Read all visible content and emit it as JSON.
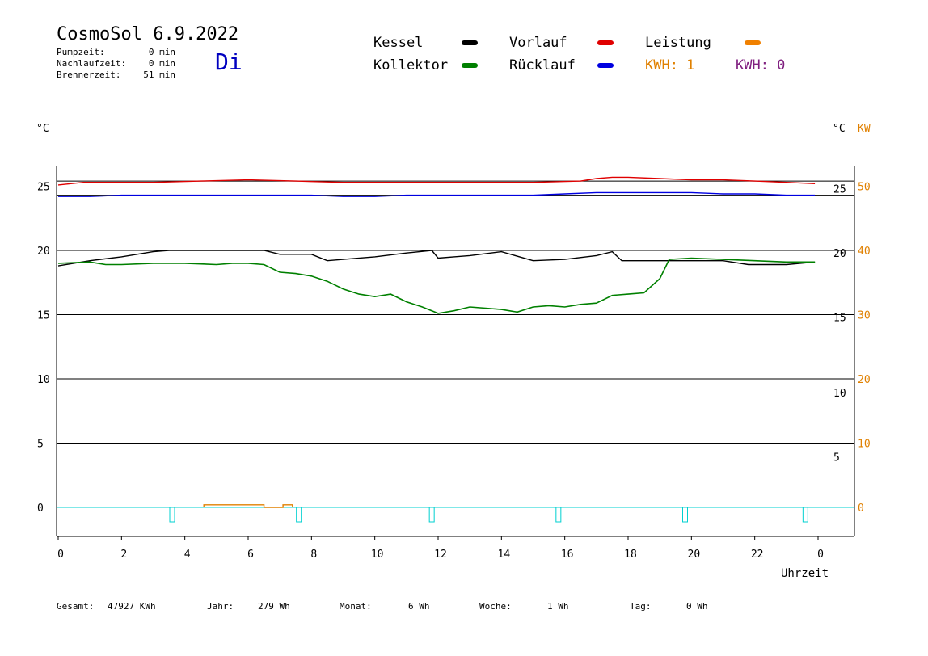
{
  "header": {
    "title": "CosmoSol 6.9.2022",
    "day": "Di",
    "stats": [
      {
        "label": "Pumpzeit:",
        "value": "0 min"
      },
      {
        "label": "Nachlaufzeit:",
        "value": "0 min"
      },
      {
        "label": "Brennerzeit:",
        "value": "51 min"
      }
    ]
  },
  "legend": {
    "kessel": {
      "label": "Kessel",
      "color": "#000000"
    },
    "kollektor": {
      "label": "Kollektor",
      "color": "#008000"
    },
    "vorlauf": {
      "label": "Vorlauf",
      "color": "#e00000"
    },
    "ruecklauf": {
      "label": "Rücklauf",
      "color": "#0000e0"
    },
    "leistung": {
      "label": "Leistung",
      "color": "#f08000"
    },
    "kwh1": {
      "label": "KWH: 1",
      "color": "#e08000"
    },
    "kwh2": {
      "label": "KWH: 0",
      "color": "#802080"
    }
  },
  "footer": {
    "gesamt": {
      "label": "Gesamt:",
      "value": "47927 KWh"
    },
    "jahr": {
      "label": "Jahr:",
      "value": "279 Wh"
    },
    "monat": {
      "label": "Monat:",
      "value": "6 Wh"
    },
    "woche": {
      "label": "Woche:",
      "value": "1 Wh"
    },
    "tag": {
      "label": "Tag:",
      "value": "0 Wh"
    }
  },
  "chart_data": {
    "type": "line",
    "left_unit": "°C",
    "right_unit": "°C",
    "right_unit2": "KW",
    "xlabel": "Uhrzeit",
    "x_ticks": [
      "0",
      "2",
      "4",
      "6",
      "8",
      "10",
      "12",
      "14",
      "16",
      "18",
      "20",
      "22",
      "0"
    ],
    "xlim": [
      0,
      24
    ],
    "left_ticks": [
      "0",
      "5",
      "10",
      "15",
      "20",
      "25"
    ],
    "left_ylim": [
      0,
      25
    ],
    "right_ticks": [
      "5",
      "10",
      "15",
      "20",
      "25"
    ],
    "kw_ticks": [
      "0",
      "10",
      "20",
      "30",
      "40",
      "50"
    ],
    "series": [
      {
        "name": "Vorlauf",
        "color": "#e00000",
        "x": [
          0,
          0.8,
          1.5,
          3,
          4.5,
          6,
          7.5,
          9,
          10.5,
          12,
          13.5,
          15,
          16.5,
          17,
          17.5,
          18,
          19,
          20,
          21,
          22,
          23,
          23.9
        ],
        "y": [
          25.1,
          25.3,
          25.3,
          25.3,
          25.4,
          25.5,
          25.4,
          25.3,
          25.3,
          25.3,
          25.3,
          25.3,
          25.4,
          25.6,
          25.7,
          25.7,
          25.6,
          25.5,
          25.5,
          25.4,
          25.3,
          25.2
        ]
      },
      {
        "name": "Rücklauf",
        "color": "#0000e0",
        "x": [
          0,
          1,
          2,
          3,
          4,
          5,
          6,
          7,
          8,
          9,
          10,
          11,
          12,
          13,
          14,
          15,
          16,
          17,
          18,
          19,
          20,
          21,
          22,
          23,
          23.9
        ],
        "y": [
          24.2,
          24.2,
          24.3,
          24.3,
          24.3,
          24.3,
          24.3,
          24.3,
          24.3,
          24.2,
          24.2,
          24.3,
          24.3,
          24.3,
          24.3,
          24.3,
          24.4,
          24.5,
          24.5,
          24.5,
          24.5,
          24.4,
          24.4,
          24.3,
          24.3
        ]
      },
      {
        "name": "Kessel",
        "color": "#000000",
        "x": [
          0,
          1,
          2,
          3,
          3.5,
          4,
          5,
          6,
          6.5,
          7,
          8,
          8.5,
          9,
          10,
          11,
          11.8,
          12,
          12.5,
          13,
          14,
          15,
          16,
          17,
          17.5,
          17.8,
          18,
          19,
          20,
          21,
          21.8,
          22,
          23,
          23.9
        ],
        "y": [
          18.8,
          19.2,
          19.5,
          19.9,
          20.0,
          20.0,
          20.0,
          20.0,
          20.0,
          19.7,
          19.7,
          19.2,
          19.3,
          19.5,
          19.8,
          20.0,
          19.4,
          19.5,
          19.6,
          19.9,
          19.2,
          19.3,
          19.6,
          19.9,
          19.2,
          19.2,
          19.2,
          19.2,
          19.2,
          18.9,
          18.9,
          18.9,
          19.1
        ]
      },
      {
        "name": "Kollektor",
        "color": "#008000",
        "x": [
          0,
          1,
          1.5,
          2,
          3,
          4,
          5,
          5.5,
          6,
          6.5,
          7,
          7.5,
          8,
          8.5,
          9,
          9.5,
          10,
          10.5,
          11,
          11.5,
          12,
          12.5,
          13,
          13.5,
          14,
          14.5,
          15,
          15.5,
          16,
          16.5,
          17,
          17.5,
          18,
          18.5,
          19,
          19.3,
          20,
          21,
          22,
          23,
          23.9
        ],
        "y": [
          19.0,
          19.1,
          18.9,
          18.9,
          19.0,
          19.0,
          18.9,
          19.0,
          19.0,
          18.9,
          18.3,
          18.2,
          18.0,
          17.6,
          17.0,
          16.6,
          16.4,
          16.6,
          16.0,
          15.6,
          15.1,
          15.3,
          15.6,
          15.5,
          15.4,
          15.2,
          15.6,
          15.7,
          15.6,
          15.8,
          15.9,
          16.5,
          16.6,
          16.7,
          17.8,
          19.3,
          19.4,
          19.3,
          19.2,
          19.1,
          19.1
        ]
      },
      {
        "name": "Leistung",
        "color": "#e08000",
        "x": [
          4.6,
          4.6,
          6.5,
          6.5,
          7.1,
          7.1,
          7.4,
          7.4
        ],
        "y": [
          0,
          0.2,
          0.2,
          0,
          0,
          0.2,
          0.2,
          0
        ]
      }
    ]
  }
}
